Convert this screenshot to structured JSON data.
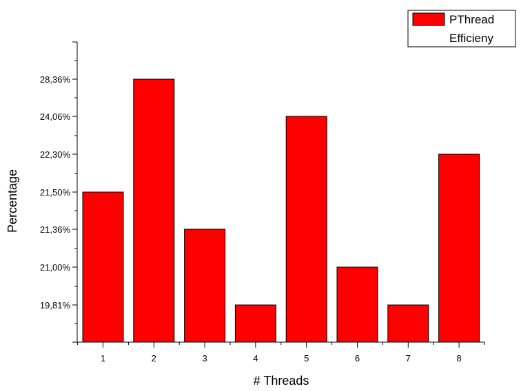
{
  "chart_data": {
    "type": "bar",
    "title": "",
    "xlabel": "# Threads",
    "ylabel": "Percentage",
    "categories": [
      "1",
      "2",
      "3",
      "4",
      "5",
      "6",
      "7",
      "8"
    ],
    "series": [
      {
        "name_lines": [
          "PThread",
          "Efficieny"
        ],
        "color": "#ff0000",
        "value_labels": [
          "21,50%",
          "28,36%",
          "21,36%",
          "19,81%",
          "24,06%",
          "21,00%",
          "19,81%",
          "22,30%"
        ]
      }
    ],
    "y_tick_labels": [
      "19,81%",
      "21,00%",
      "21,36%",
      "21,50%",
      "22,30%",
      "24,06%",
      "28,36%"
    ],
    "y_scale": "categorical-ordered (equally spaced tick labels)",
    "legend_position": "top-right",
    "grid": false
  }
}
